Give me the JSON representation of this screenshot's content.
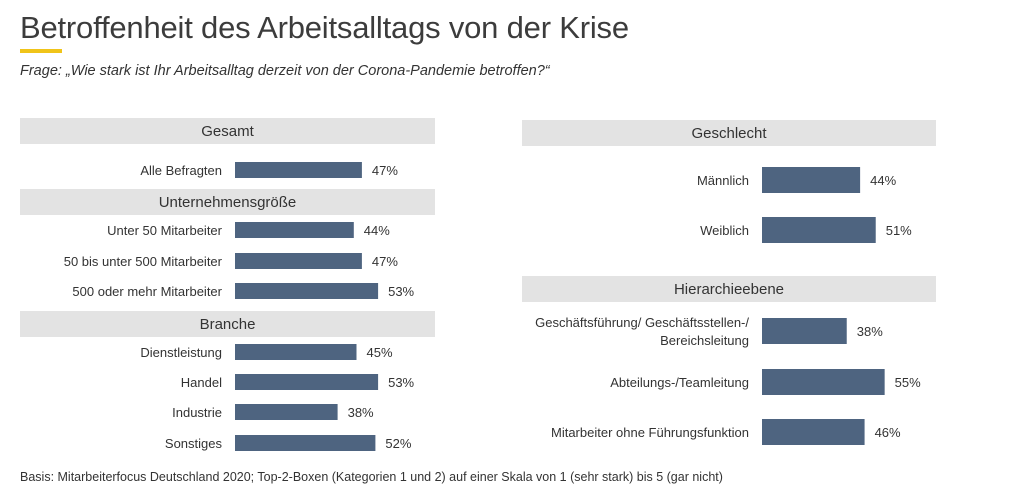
{
  "title": "Betroffenheit des Arbeitsalltags von der Krise",
  "subtitle": "Frage: „Wie stark ist Ihr Arbeitsalltag derzeit von der Corona-Pandemie betroffen?“",
  "footer": "Basis: Mitarbeiterfocus Deutschland 2020; Top-2-Boxen (Kategorien 1 und 2) auf einer Skala von 1 (sehr stark) bis 5 (gar nicht)",
  "colors": {
    "bar": "#4e6480",
    "header_bg": "#e3e3e3",
    "accent": "#f0c419"
  },
  "chart_data": [
    {
      "type": "bar",
      "orientation": "horizontal",
      "unit": "%",
      "groups": [
        {
          "header": "Gesamt",
          "categories": [
            "Alle Befragten"
          ],
          "values": [
            47
          ]
        },
        {
          "header": "Unternehmensgröße",
          "categories": [
            "Unter 50 Mitarbeiter",
            "50 bis unter 500 Mitarbeiter",
            "500 oder mehr Mitarbeiter"
          ],
          "values": [
            44,
            47,
            53
          ]
        },
        {
          "header": "Branche",
          "categories": [
            "Dienstleistung",
            "Handel",
            "Industrie",
            "Sonstiges"
          ],
          "values": [
            45,
            53,
            38,
            52
          ]
        }
      ]
    },
    {
      "type": "bar",
      "orientation": "horizontal",
      "unit": "%",
      "groups": [
        {
          "header": "Geschlecht",
          "categories": [
            "Männlich",
            "Weiblich"
          ],
          "values": [
            44,
            51
          ]
        },
        {
          "header": "Hierarchieebene",
          "categories": [
            [
              "Geschäftsführung/ Geschäftsstellen-/",
              "Bereichsleitung"
            ],
            "Abteilungs-/Teamleitung",
            "Mitarbeiter ohne Führungsfunktion"
          ],
          "values": [
            38,
            55,
            46
          ]
        }
      ]
    }
  ]
}
